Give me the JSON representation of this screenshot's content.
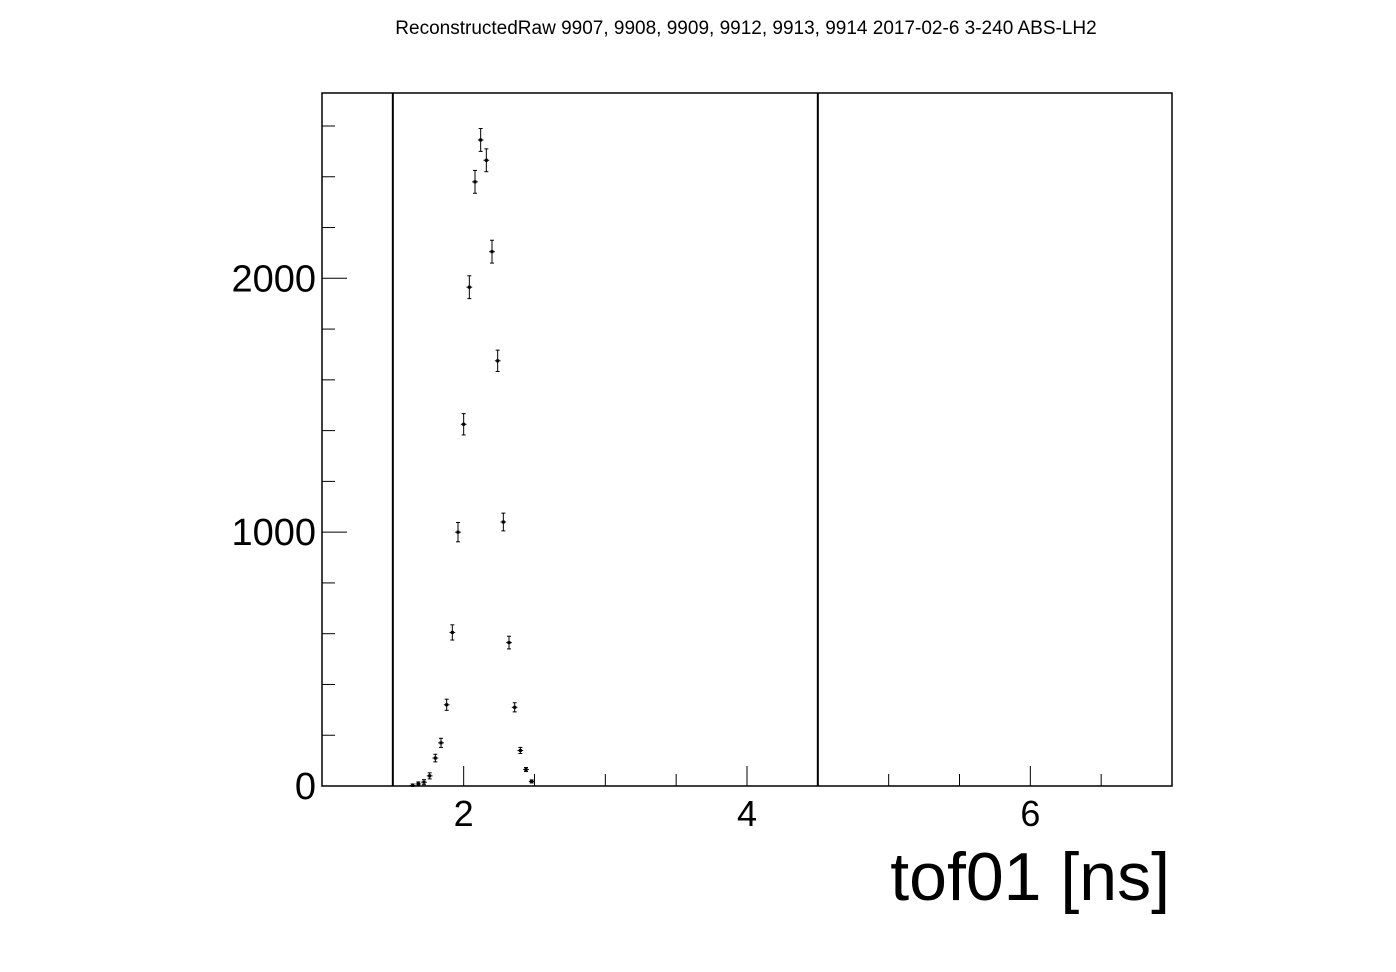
{
  "chart_data": {
    "type": "scatter",
    "title": "ReconstructedRaw 9907, 9908, 9909, 9912, 9913, 9914 2017-02-6 3-240 ABS-LH2",
    "xlabel": "tof01 [ns]",
    "ylabel": "",
    "xlim": [
      1.0,
      7.0
    ],
    "ylim": [
      0,
      2730
    ],
    "x_ticks": [
      {
        "value": 2,
        "label": "2"
      },
      {
        "value": 4,
        "label": "4"
      },
      {
        "value": 6,
        "label": "6"
      }
    ],
    "y_ticks": [
      {
        "value": 0,
        "label": "0"
      },
      {
        "value": 1000,
        "label": "1000"
      },
      {
        "value": 2000,
        "label": "2000"
      }
    ],
    "grid": false,
    "legend": "none",
    "cut_lines_x": [
      1.5,
      4.5
    ],
    "series": [
      {
        "points": [
          {
            "x": 1.64,
            "y": 2,
            "err": 6
          },
          {
            "x": 1.68,
            "y": 8,
            "err": 8
          },
          {
            "x": 1.72,
            "y": 15,
            "err": 10
          },
          {
            "x": 1.76,
            "y": 40,
            "err": 12
          },
          {
            "x": 1.8,
            "y": 110,
            "err": 15
          },
          {
            "x": 1.84,
            "y": 170,
            "err": 18
          },
          {
            "x": 1.88,
            "y": 320,
            "err": 22
          },
          {
            "x": 1.92,
            "y": 605,
            "err": 30
          },
          {
            "x": 1.96,
            "y": 1000,
            "err": 38
          },
          {
            "x": 2.0,
            "y": 1425,
            "err": 42
          },
          {
            "x": 2.04,
            "y": 1965,
            "err": 45
          },
          {
            "x": 2.08,
            "y": 2380,
            "err": 45
          },
          {
            "x": 2.12,
            "y": 2545,
            "err": 45
          },
          {
            "x": 2.16,
            "y": 2465,
            "err": 45
          },
          {
            "x": 2.2,
            "y": 2105,
            "err": 45
          },
          {
            "x": 2.24,
            "y": 1675,
            "err": 42
          },
          {
            "x": 2.28,
            "y": 1040,
            "err": 35
          },
          {
            "x": 2.32,
            "y": 565,
            "err": 25
          },
          {
            "x": 2.36,
            "y": 310,
            "err": 18
          },
          {
            "x": 2.4,
            "y": 140,
            "err": 12
          },
          {
            "x": 2.44,
            "y": 65,
            "err": 8
          },
          {
            "x": 2.48,
            "y": 18,
            "err": 6
          }
        ]
      }
    ]
  }
}
